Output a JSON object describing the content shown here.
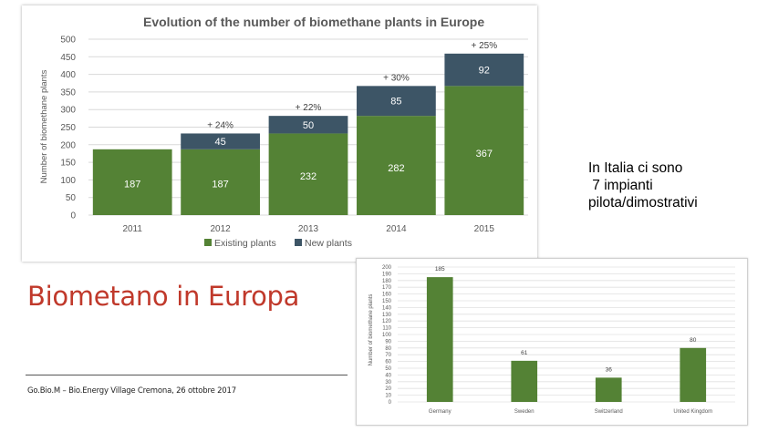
{
  "chart_data": [
    {
      "type": "bar",
      "stacked": true,
      "title": "Evolution of the number of biomethane plants in Europe",
      "xlabel": "",
      "ylabel": "Number of biomethane plants",
      "ylim": [
        0,
        500
      ],
      "yticks": [
        0,
        50,
        100,
        150,
        200,
        250,
        300,
        350,
        400,
        450,
        500
      ],
      "grid": true,
      "legend_position": "bottom",
      "categories": [
        "2011",
        "2012",
        "2013",
        "2014",
        "2015"
      ],
      "series": [
        {
          "name": "Existing plants",
          "color": "#548235",
          "values": [
            187,
            187,
            232,
            282,
            367
          ]
        },
        {
          "name": "New plants",
          "color": "#3d5566",
          "values": [
            0,
            45,
            50,
            85,
            92
          ]
        }
      ],
      "labels": {
        "existing": [
          "187",
          "187",
          "232",
          "282",
          "367"
        ],
        "new": [
          "",
          "45",
          "50",
          "85",
          "92"
        ]
      },
      "annotations": [
        "",
        "+ 24%",
        "+ 22%",
        "+ 30%",
        "+ 25%"
      ]
    },
    {
      "type": "bar",
      "title": "",
      "xlabel": "",
      "ylabel": "Number of biomethane plants",
      "ylim": [
        0,
        200
      ],
      "yticks": [
        0,
        10,
        20,
        30,
        40,
        50,
        60,
        70,
        80,
        90,
        100,
        110,
        120,
        130,
        140,
        150,
        160,
        170,
        180,
        190,
        200
      ],
      "grid": true,
      "categories": [
        "Germany",
        "Sweden",
        "Switzerland",
        "United Kingdom"
      ],
      "values": [
        185,
        61,
        36,
        80
      ],
      "value_labels": [
        "185",
        "61",
        "36",
        "80"
      ],
      "color": "#548235"
    }
  ],
  "slide": {
    "title": "Biometano in Europa",
    "footer": "Go.Bio.M – Bio.Energy Village Cremona, 26 ottobre 2017"
  },
  "note": {
    "lines": [
      "In Italia ci sono",
      " 7 impianti",
      "pilota/dimostrativi"
    ]
  }
}
